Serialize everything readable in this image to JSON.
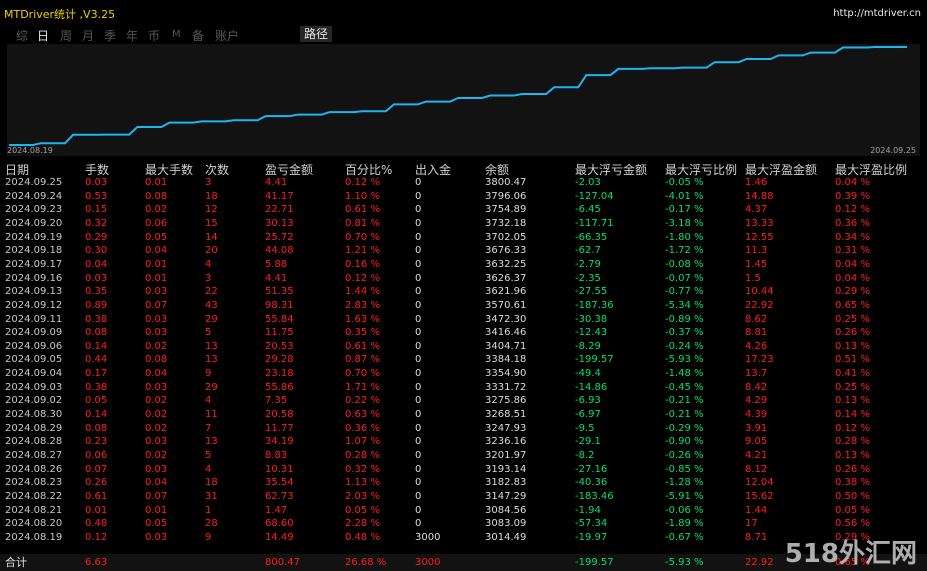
{
  "header": {
    "title": "MTDriver统计 ,V3.25",
    "site": "http://mtdriver.cn"
  },
  "tabs": [
    "综",
    "日",
    "周",
    "月",
    "季",
    "年",
    "币",
    "M",
    "备",
    "账户",
    "路径"
  ],
  "active_tab": "日",
  "chart": {
    "start_date": "2024.08.19",
    "end_date": "2024.09.25",
    "line_color": "#1eb4f0"
  },
  "columns": [
    "日期",
    "手数",
    "最大手数",
    "次数",
    "盈亏金额",
    "百分比%",
    "出入金",
    "余额",
    "最大浮亏金额",
    "最大浮亏比例",
    "最大浮盈金额",
    "最大浮盈比例"
  ],
  "rows": [
    [
      "2024.09.25",
      "0.03",
      "0.01",
      "3",
      "4.41",
      "0.12 %",
      "0",
      "3800.47",
      "-2.03",
      "-0.05 %",
      "1.46",
      "0.04 %"
    ],
    [
      "2024.09.24",
      "0.53",
      "0.08",
      "18",
      "41.17",
      "1.10 %",
      "0",
      "3796.06",
      "-127.04",
      "-4.01 %",
      "14.88",
      "0.39 %"
    ],
    [
      "2024.09.23",
      "0.15",
      "0.02",
      "12",
      "22.71",
      "0.61 %",
      "0",
      "3754.89",
      "-6.45",
      "-0.17 %",
      "4.37",
      "0.12 %"
    ],
    [
      "2024.09.20",
      "0.32",
      "0.06",
      "15",
      "30.13",
      "0.81 %",
      "0",
      "3732.18",
      "-117.71",
      "-3.18 %",
      "13.33",
      "0.36 %"
    ],
    [
      "2024.09.19",
      "0.29",
      "0.05",
      "14",
      "25.72",
      "0.70 %",
      "0",
      "3702.05",
      "-66.35",
      "-1.80 %",
      "12.55",
      "0.34 %"
    ],
    [
      "2024.09.18",
      "0.30",
      "0.04",
      "20",
      "44.08",
      "1.21 %",
      "0",
      "3676.33",
      "-62.7",
      "-1.72 %",
      "11.3",
      "0.31 %"
    ],
    [
      "2024.09.17",
      "0.04",
      "0.01",
      "4",
      "5.88",
      "0.16 %",
      "0",
      "3632.25",
      "-2.79",
      "-0.08 %",
      "1.45",
      "0.04 %"
    ],
    [
      "2024.09.16",
      "0.03",
      "0.01",
      "3",
      "4.41",
      "0.12 %",
      "0",
      "3626.37",
      "-2.35",
      "-0.07 %",
      "1.5",
      "0.04 %"
    ],
    [
      "2024.09.13",
      "0.35",
      "0.03",
      "22",
      "51.35",
      "1.44 %",
      "0",
      "3621.96",
      "-27.55",
      "-0.77 %",
      "10.44",
      "0.29 %"
    ],
    [
      "2024.09.12",
      "0.89",
      "0.07",
      "43",
      "98.31",
      "2.83 %",
      "0",
      "3570.61",
      "-187.36",
      "-5.34 %",
      "22.92",
      "0.65 %"
    ],
    [
      "2024.09.11",
      "0.38",
      "0.03",
      "29",
      "55.84",
      "1.63 %",
      "0",
      "3472.30",
      "-30.38",
      "-0.89 %",
      "8.62",
      "0.25 %"
    ],
    [
      "2024.09.09",
      "0.08",
      "0.03",
      "5",
      "11.75",
      "0.35 %",
      "0",
      "3416.46",
      "-12.43",
      "-0.37 %",
      "8.81",
      "0.26 %"
    ],
    [
      "2024.09.06",
      "0.14",
      "0.02",
      "13",
      "20.53",
      "0.61 %",
      "0",
      "3404.71",
      "-8.29",
      "-0.24 %",
      "4.26",
      "0.13 %"
    ],
    [
      "2024.09.05",
      "0.44",
      "0.08",
      "13",
      "29.28",
      "0.87 %",
      "0",
      "3384.18",
      "-199.57",
      "-5.93 %",
      "17.23",
      "0.51 %"
    ],
    [
      "2024.09.04",
      "0.17",
      "0.04",
      "9",
      "23.18",
      "0.70 %",
      "0",
      "3354.90",
      "-49.4",
      "-1.48 %",
      "13.7",
      "0.41 %"
    ],
    [
      "2024.09.03",
      "0.38",
      "0.03",
      "29",
      "55.86",
      "1.71 %",
      "0",
      "3331.72",
      "-14.86",
      "-0.45 %",
      "8.42",
      "0.25 %"
    ],
    [
      "2024.09.02",
      "0.05",
      "0.02",
      "4",
      "7.35",
      "0.22 %",
      "0",
      "3275.86",
      "-6.93",
      "-0.21 %",
      "4.29",
      "0.13 %"
    ],
    [
      "2024.08.30",
      "0.14",
      "0.02",
      "11",
      "20.58",
      "0.63 %",
      "0",
      "3268.51",
      "-6.97",
      "-0.21 %",
      "4.39",
      "0.14 %"
    ],
    [
      "2024.08.29",
      "0.08",
      "0.02",
      "7",
      "11.77",
      "0.36 %",
      "0",
      "3247.93",
      "-9.5",
      "-0.29 %",
      "3.91",
      "0.12 %"
    ],
    [
      "2024.08.28",
      "0.23",
      "0.03",
      "13",
      "34.19",
      "1.07 %",
      "0",
      "3236.16",
      "-29.1",
      "-0.90 %",
      "9.05",
      "0.28 %"
    ],
    [
      "2024.08.27",
      "0.06",
      "0.02",
      "5",
      "8.83",
      "0.28 %",
      "0",
      "3201.97",
      "-8.2",
      "-0.26 %",
      "4.21",
      "0.13 %"
    ],
    [
      "2024.08.26",
      "0.07",
      "0.03",
      "4",
      "10.31",
      "0.32 %",
      "0",
      "3193.14",
      "-27.16",
      "-0.85 %",
      "8.12",
      "0.26 %"
    ],
    [
      "2024.08.23",
      "0.26",
      "0.04",
      "18",
      "35.54",
      "1.13 %",
      "0",
      "3182.83",
      "-40.36",
      "-1.28 %",
      "12.04",
      "0.38 %"
    ],
    [
      "2024.08.22",
      "0.61",
      "0.07",
      "31",
      "62.73",
      "2.03 %",
      "0",
      "3147.29",
      "-183.46",
      "-5.91 %",
      "15.62",
      "0.50 %"
    ],
    [
      "2024.08.21",
      "0.01",
      "0.01",
      "1",
      "1.47",
      "0.05 %",
      "0",
      "3084.56",
      "-1.94",
      "-0.06 %",
      "1.44",
      "0.05 %"
    ],
    [
      "2024.08.20",
      "0.48",
      "0.05",
      "28",
      "68.60",
      "2.28 %",
      "0",
      "3083.09",
      "-57.34",
      "-1.89 %",
      "17",
      "0.56 %"
    ],
    [
      "2024.08.19",
      "0.12",
      "0.03",
      "9",
      "14.49",
      "0.48 %",
      "3000",
      "3014.49",
      "-19.97",
      "-0.67 %",
      "8.71",
      "0.29 %"
    ]
  ],
  "total": [
    "合计",
    "6.63",
    "",
    "",
    "800.47",
    "26.68 %",
    "3000",
    "",
    "-199.57",
    "-5.93 %",
    "22.92",
    "0.65 %"
  ],
  "watermark": "518外汇网"
}
